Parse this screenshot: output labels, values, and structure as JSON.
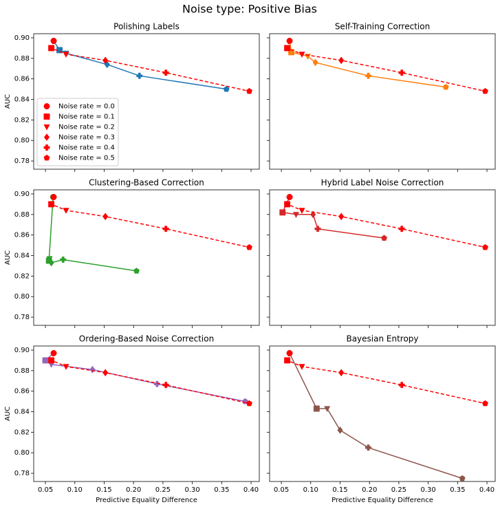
{
  "title": "Noise type: Positive Bias",
  "chart_data": [
    {
      "type": "line",
      "title": "Polishing Labels",
      "ylabel": "AUC",
      "xlim": [
        0.03,
        0.414
      ],
      "ylim": [
        0.772,
        0.904
      ],
      "xticks": [
        0.05,
        {
          "value": 0.1,
          "label": "0.10"
        },
        0.15,
        {
          "value": 0.2,
          "label": "0.20"
        },
        0.25,
        {
          "value": 0.3,
          "label": "0.30"
        },
        0.35,
        {
          "value": 0.4,
          "label": "0.40"
        }
      ],
      "yticks": [
        0.78,
        {
          "value": 0.8,
          "label": "0.80"
        },
        0.82,
        0.84,
        0.86,
        0.88,
        {
          "value": 0.9,
          "label": "0.90"
        }
      ],
      "show_xticklabels": false,
      "show_yticklabels": true,
      "markers": [
        "circle",
        "square",
        "triangle-down",
        "diamond",
        "plus",
        "pentagon"
      ],
      "legend": {
        "labels": [
          "Noise rate = 0.0",
          "Noise rate = 0.1",
          "Noise rate = 0.2",
          "Noise rate = 0.3",
          "Noise rate = 0.4",
          "Noise rate = 0.5"
        ],
        "loc": "lower left",
        "color": "#ff0000"
      },
      "series": [
        {
          "color": "#1f77b4",
          "dashed": false,
          "x": [
            0.064,
            0.074,
            0.085,
            0.155,
            0.21,
            0.358
          ],
          "values": [
            0.897,
            0.888,
            0.885,
            0.874,
            0.863,
            0.85
          ]
        },
        {
          "color": "#ff0000",
          "dashed": true,
          "x": [
            0.064,
            0.06,
            0.085,
            0.152,
            0.255,
            0.397
          ],
          "values": [
            0.897,
            0.89,
            0.884,
            0.878,
            0.866,
            0.848
          ]
        }
      ]
    },
    {
      "type": "line",
      "title": "Self-Training Correction",
      "xlim": [
        0.03,
        0.414
      ],
      "ylim": [
        0.772,
        0.904
      ],
      "xticks": [
        0.05,
        {
          "value": 0.1,
          "label": "0.10"
        },
        0.15,
        {
          "value": 0.2,
          "label": "0.20"
        },
        0.25,
        {
          "value": 0.3,
          "label": "0.30"
        },
        0.35,
        {
          "value": 0.4,
          "label": "0.40"
        }
      ],
      "yticks": [
        0.78,
        {
          "value": 0.8,
          "label": "0.80"
        },
        0.82,
        0.84,
        0.86,
        0.88,
        {
          "value": 0.9,
          "label": "0.90"
        }
      ],
      "show_xticklabels": false,
      "show_yticklabels": false,
      "markers": [
        "circle",
        "square",
        "triangle-down",
        "diamond",
        "plus",
        "pentagon"
      ],
      "series": [
        {
          "color": "#ff7f0e",
          "dashed": false,
          "x": [
            0.064,
            0.067,
            0.095,
            0.108,
            0.198,
            0.33
          ],
          "values": [
            0.897,
            0.886,
            0.882,
            0.876,
            0.863,
            0.852
          ]
        },
        {
          "color": "#ff0000",
          "dashed": true,
          "x": [
            0.064,
            0.06,
            0.085,
            0.152,
            0.255,
            0.397
          ],
          "values": [
            0.897,
            0.89,
            0.884,
            0.878,
            0.866,
            0.848
          ]
        }
      ]
    },
    {
      "type": "line",
      "title": "Clustering-Based Correction",
      "ylabel": "AUC",
      "xlim": [
        0.03,
        0.414
      ],
      "ylim": [
        0.772,
        0.904
      ],
      "xticks": [
        0.05,
        {
          "value": 0.1,
          "label": "0.10"
        },
        0.15,
        {
          "value": 0.2,
          "label": "0.20"
        },
        0.25,
        {
          "value": 0.3,
          "label": "0.30"
        },
        0.35,
        {
          "value": 0.4,
          "label": "0.40"
        }
      ],
      "yticks": [
        0.78,
        {
          "value": 0.8,
          "label": "0.80"
        },
        0.82,
        0.84,
        0.86,
        0.88,
        {
          "value": 0.9,
          "label": "0.90"
        }
      ],
      "show_xticklabels": false,
      "show_yticklabels": true,
      "markers": [
        "circle",
        "square",
        "triangle-down",
        "diamond",
        "plus",
        "pentagon"
      ],
      "series": [
        {
          "color": "#2ca02c",
          "dashed": false,
          "x": [
            0.063,
            0.056,
            0.057,
            0.06,
            0.08,
            0.205
          ],
          "values": [
            0.897,
            0.835,
            0.837,
            0.833,
            0.836,
            0.825
          ]
        },
        {
          "color": "#ff0000",
          "dashed": true,
          "x": [
            0.064,
            0.06,
            0.085,
            0.152,
            0.255,
            0.397
          ],
          "values": [
            0.897,
            0.89,
            0.884,
            0.878,
            0.866,
            0.848
          ]
        }
      ]
    },
    {
      "type": "line",
      "title": "Hybrid Label Noise Correction",
      "xlim": [
        0.03,
        0.414
      ],
      "ylim": [
        0.772,
        0.904
      ],
      "xticks": [
        0.05,
        {
          "value": 0.1,
          "label": "0.10"
        },
        0.15,
        {
          "value": 0.2,
          "label": "0.20"
        },
        0.25,
        {
          "value": 0.3,
          "label": "0.30"
        },
        0.35,
        {
          "value": 0.4,
          "label": "0.40"
        }
      ],
      "yticks": [
        0.78,
        {
          "value": 0.8,
          "label": "0.80"
        },
        0.82,
        0.84,
        0.86,
        0.88,
        {
          "value": 0.9,
          "label": "0.90"
        }
      ],
      "show_xticklabels": false,
      "show_yticklabels": false,
      "markers": [
        "circle",
        "square",
        "triangle-down",
        "diamond",
        "plus",
        "pentagon"
      ],
      "series": [
        {
          "color": "#d62728",
          "dashed": false,
          "x": [
            0.064,
            0.052,
            0.075,
            0.104,
            0.112,
            0.225
          ],
          "values": [
            0.897,
            0.882,
            0.88,
            0.88,
            0.866,
            0.857
          ]
        },
        {
          "color": "#ff0000",
          "dashed": true,
          "x": [
            0.064,
            0.06,
            0.085,
            0.152,
            0.255,
            0.397
          ],
          "values": [
            0.897,
            0.89,
            0.884,
            0.878,
            0.866,
            0.848
          ]
        }
      ]
    },
    {
      "type": "line",
      "title": "Ordering-Based Noise Correction",
      "ylabel": "AUC",
      "xlabel": "Predictive Equality Difference",
      "xlim": [
        0.03,
        0.414
      ],
      "ylim": [
        0.772,
        0.904
      ],
      "xticks": [
        0.05,
        {
          "value": 0.1,
          "label": "0.10"
        },
        0.15,
        {
          "value": 0.2,
          "label": "0.20"
        },
        0.25,
        {
          "value": 0.3,
          "label": "0.30"
        },
        0.35,
        {
          "value": 0.4,
          "label": "0.40"
        }
      ],
      "yticks": [
        0.78,
        {
          "value": 0.8,
          "label": "0.80"
        },
        0.82,
        0.84,
        0.86,
        0.88,
        {
          "value": 0.9,
          "label": "0.90"
        }
      ],
      "show_xticklabels": true,
      "show_yticklabels": true,
      "markers": [
        "circle",
        "square",
        "triangle-down",
        "diamond",
        "plus",
        "pentagon"
      ],
      "series": [
        {
          "color": "#9467bd",
          "dashed": false,
          "x": [
            0.064,
            0.05,
            0.06,
            0.13,
            0.24,
            0.39
          ],
          "values": [
            0.897,
            0.89,
            0.886,
            0.881,
            0.867,
            0.85
          ]
        },
        {
          "color": "#ff0000",
          "dashed": true,
          "x": [
            0.064,
            0.06,
            0.085,
            0.152,
            0.255,
            0.397
          ],
          "values": [
            0.897,
            0.89,
            0.884,
            0.878,
            0.866,
            0.848
          ]
        }
      ]
    },
    {
      "type": "line",
      "title": "Bayesian Entropy",
      "xlabel": "Predictive Equality Difference",
      "xlim": [
        0.03,
        0.414
      ],
      "ylim": [
        0.772,
        0.904
      ],
      "xticks": [
        0.05,
        {
          "value": 0.1,
          "label": "0.10"
        },
        0.15,
        {
          "value": 0.2,
          "label": "0.20"
        },
        0.25,
        {
          "value": 0.3,
          "label": "0.30"
        },
        0.35,
        {
          "value": 0.4,
          "label": "0.40"
        }
      ],
      "yticks": [
        0.78,
        {
          "value": 0.8,
          "label": "0.80"
        },
        0.82,
        0.84,
        0.86,
        0.88,
        {
          "value": 0.9,
          "label": "0.90"
        }
      ],
      "show_xticklabels": true,
      "show_yticklabels": false,
      "markers": [
        "circle",
        "square",
        "triangle-down",
        "diamond",
        "plus",
        "pentagon"
      ],
      "series": [
        {
          "color": "#8c564b",
          "dashed": false,
          "x": [
            0.064,
            0.11,
            0.128,
            0.15,
            0.198,
            0.358
          ],
          "values": [
            0.897,
            0.843,
            0.843,
            0.822,
            0.805,
            0.775
          ]
        },
        {
          "color": "#ff0000",
          "dashed": true,
          "x": [
            0.064,
            0.06,
            0.085,
            0.152,
            0.255,
            0.397
          ],
          "values": [
            0.897,
            0.89,
            0.884,
            0.878,
            0.866,
            0.848
          ]
        }
      ]
    }
  ]
}
